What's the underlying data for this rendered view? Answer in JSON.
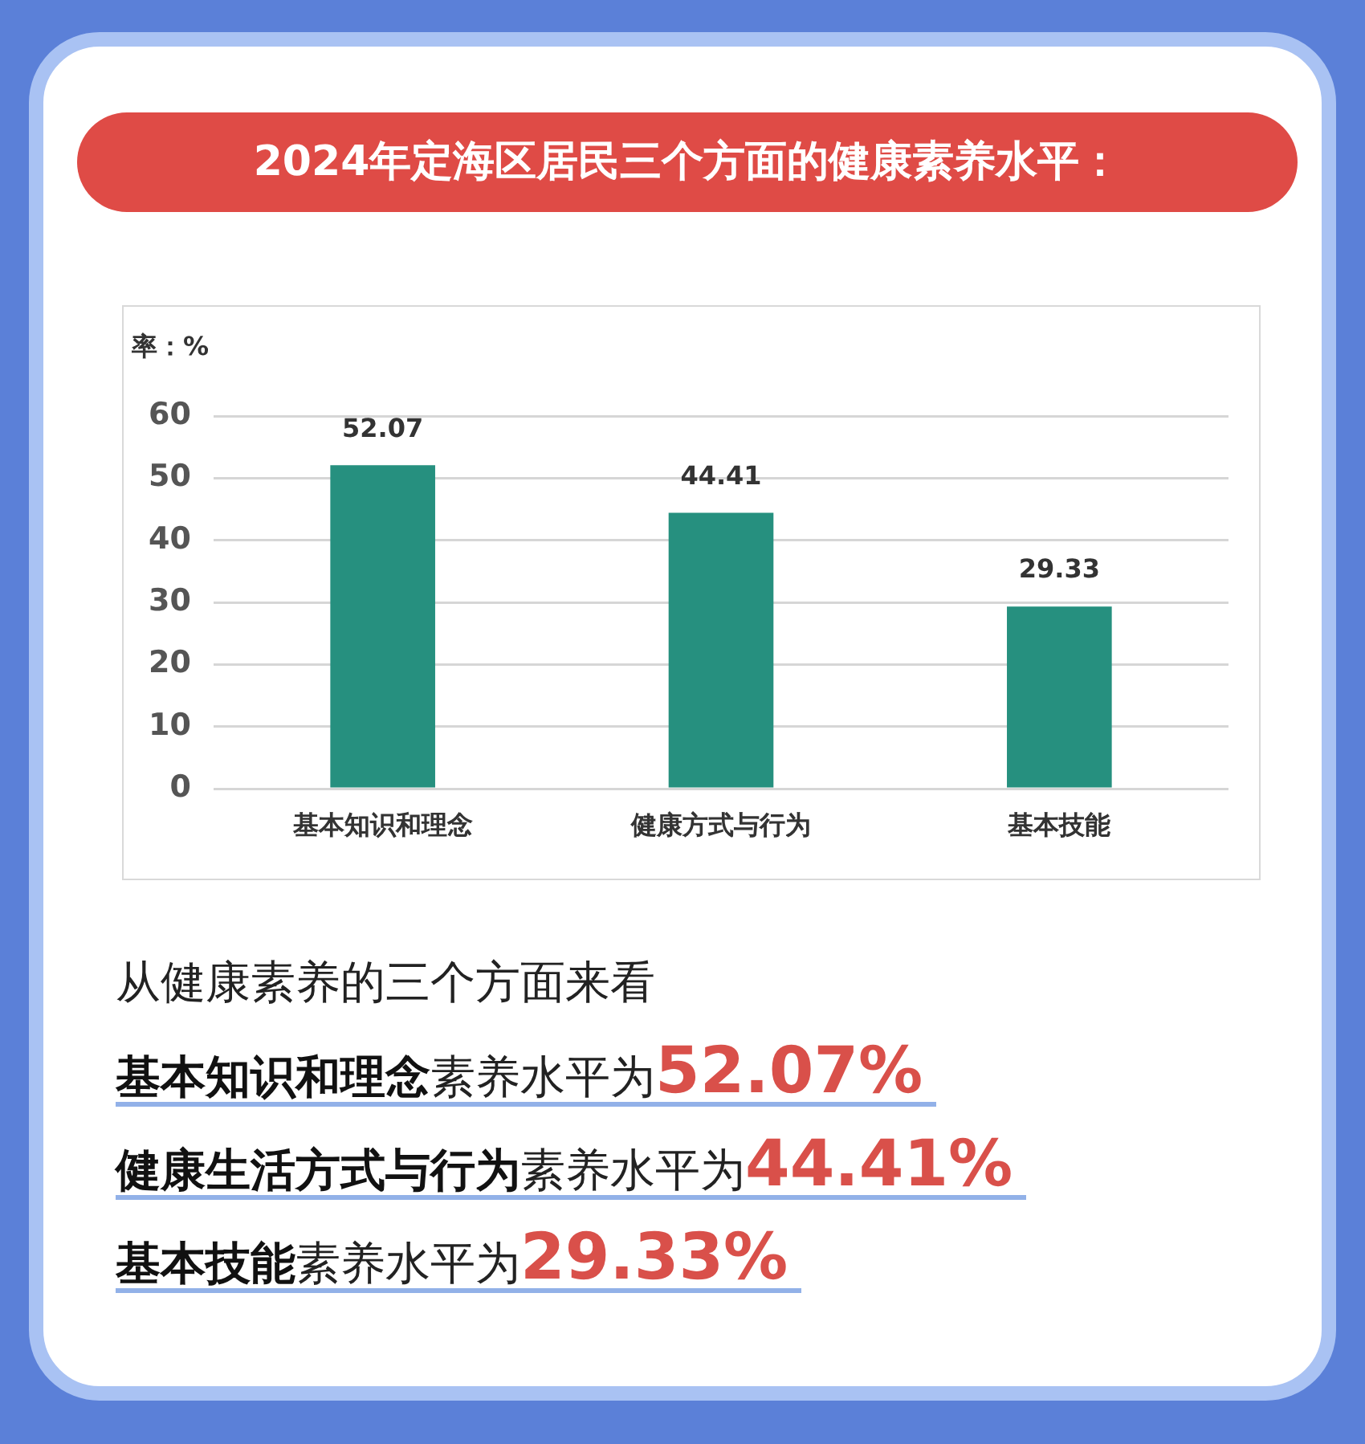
{
  "chart_data": {
    "type": "bar",
    "title": "2024年定海区居民三个方面的健康素养水平：",
    "ylabel": "率：%",
    "categories": [
      "基本知识和理念",
      "健康方式与行为",
      "基本技能"
    ],
    "values": [
      52.07,
      44.41,
      29.33
    ],
    "color": "#26907f",
    "ylim": [
      0,
      60
    ],
    "yticks": [
      0,
      10,
      20,
      30,
      40,
      50,
      60
    ],
    "grid": "y",
    "data_labels": true,
    "annotations": [
      "从健康素养的三个方面来看",
      "基本知识和理念",
      "素养水平为",
      "52.07%",
      "健康生活方式与行为",
      "素养水平为",
      "44.41%",
      "基本技能",
      "素养水平为",
      "29.33%"
    ]
  }
}
